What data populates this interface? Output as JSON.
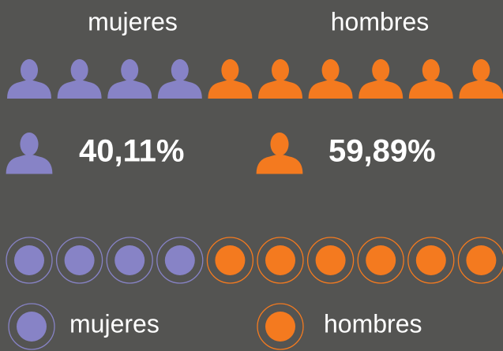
{
  "chart_data": {
    "type": "pictograph",
    "categories": [
      "mujeres",
      "hombres"
    ],
    "values": [
      40.11,
      59.89
    ],
    "value_labels": [
      "40,11%",
      "59,89%"
    ],
    "colors": [
      "#8783c6",
      "#f47a1f"
    ]
  }
}
